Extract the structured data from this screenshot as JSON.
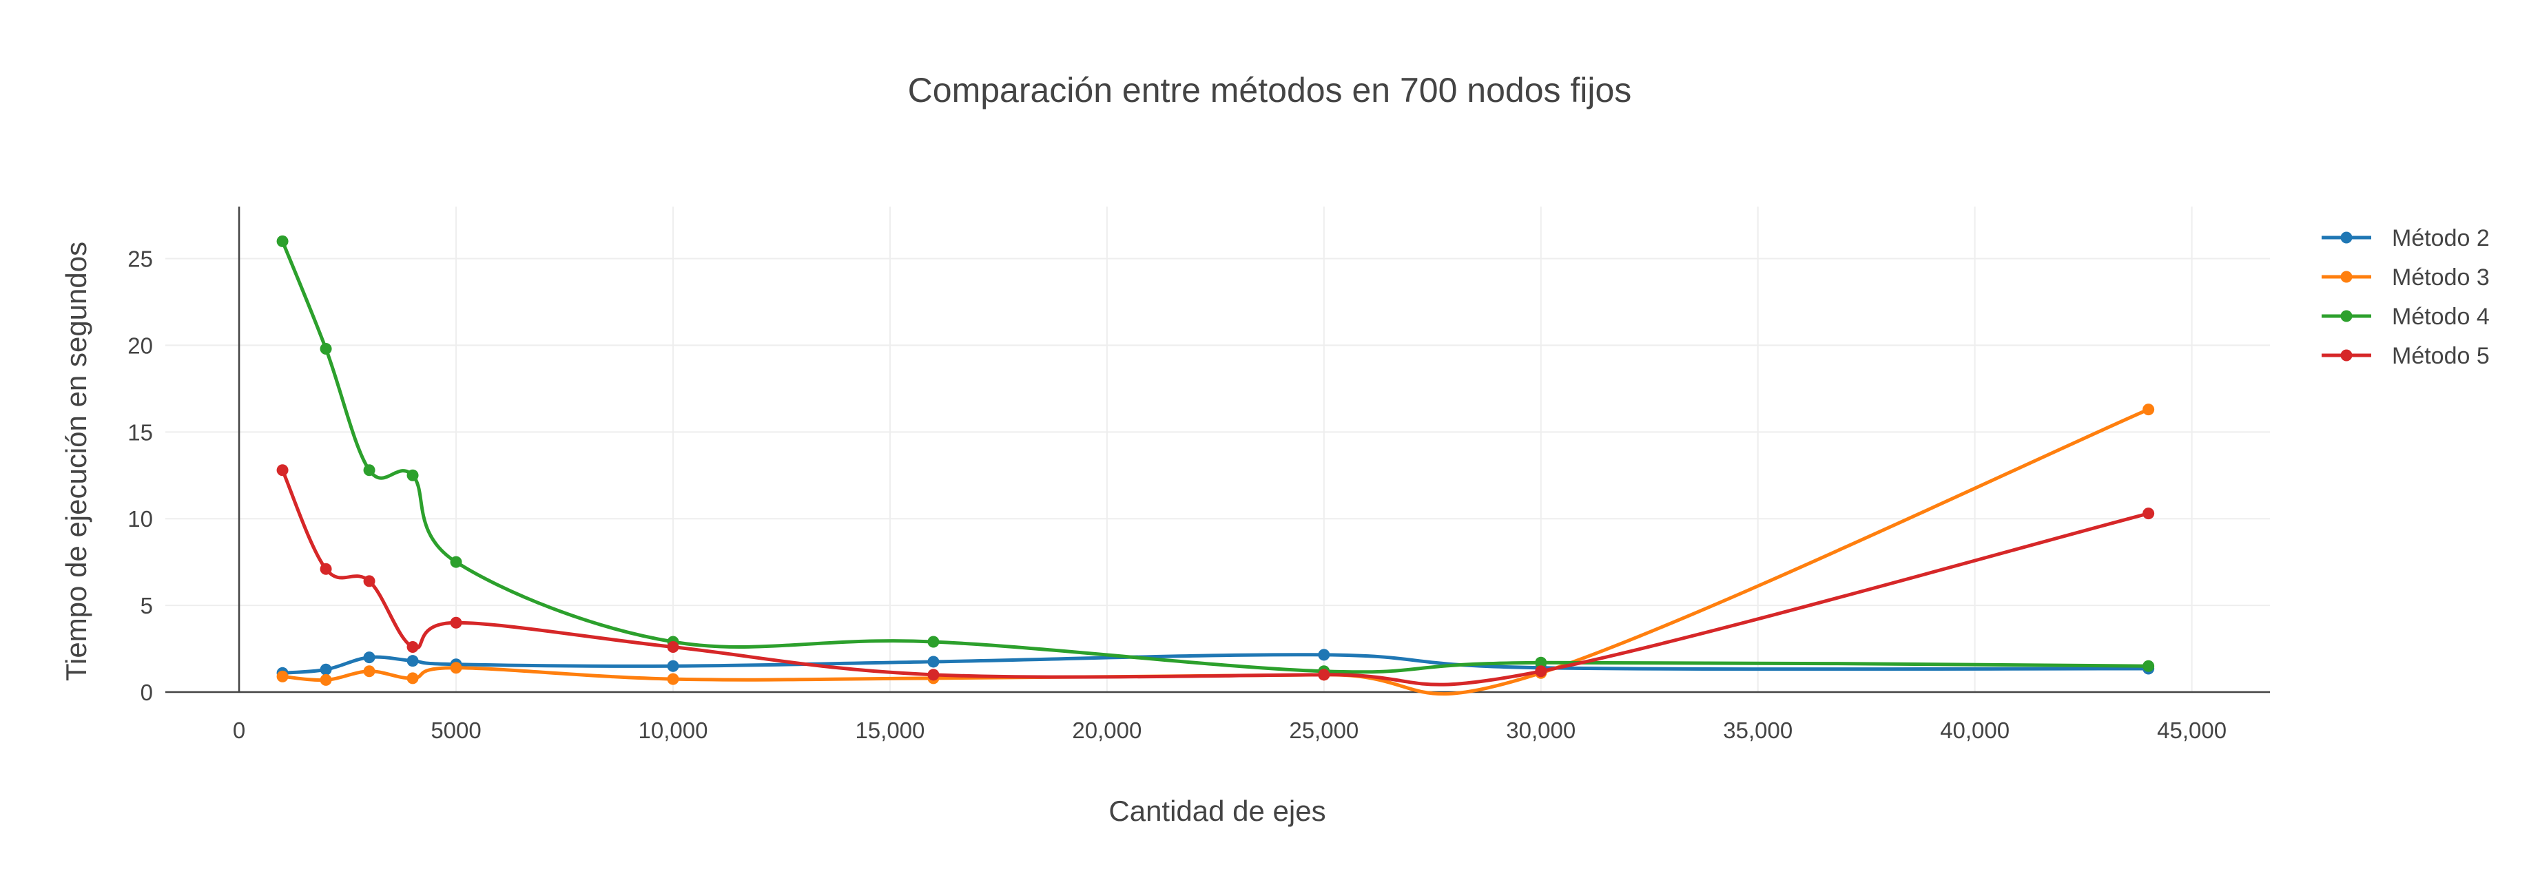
{
  "chart_data": {
    "type": "line",
    "title": "Comparación entre métodos en 700 nodos fijos",
    "xlabel": "Cantidad de ejes",
    "ylabel": "Tiempo de ejecución en segundos",
    "xlim": [
      -1700,
      46800
    ],
    "ylim": [
      0,
      28
    ],
    "x_ticks": [
      0,
      5000,
      10000,
      15000,
      20000,
      25000,
      30000,
      35000,
      40000,
      45000
    ],
    "x_tick_labels": [
      "0",
      "5000",
      "10,000",
      "15,000",
      "20,000",
      "25,000",
      "30,000",
      "35,000",
      "40,000",
      "45,000"
    ],
    "y_ticks": [
      0,
      5,
      10,
      15,
      20,
      25
    ],
    "y_tick_labels": [
      "0",
      "5",
      "10",
      "15",
      "20",
      "25"
    ],
    "grid": true,
    "legend_position": "top-right",
    "line_shape": "spline",
    "x": [
      1000,
      2000,
      3000,
      4000,
      5000,
      10000,
      16000,
      25000,
      30000,
      44000
    ],
    "series": [
      {
        "name": "Método 2",
        "color": "#1f77b4",
        "values": [
          1.1,
          1.3,
          2.0,
          1.8,
          1.6,
          1.5,
          1.75,
          2.15,
          1.4,
          1.35
        ]
      },
      {
        "name": "Método 3",
        "color": "#ff7f0e",
        "values": [
          0.9,
          0.7,
          1.2,
          0.8,
          1.4,
          0.75,
          0.8,
          1.0,
          1.1,
          16.3
        ]
      },
      {
        "name": "Método 4",
        "color": "#2ca02c",
        "values": [
          26.0,
          19.8,
          12.8,
          12.5,
          7.5,
          2.9,
          2.9,
          1.2,
          1.7,
          1.5
        ]
      },
      {
        "name": "Método 5",
        "color": "#d62728",
        "values": [
          12.8,
          7.1,
          6.4,
          2.6,
          4.0,
          2.6,
          1.0,
          1.0,
          1.2,
          10.3
        ]
      }
    ]
  }
}
